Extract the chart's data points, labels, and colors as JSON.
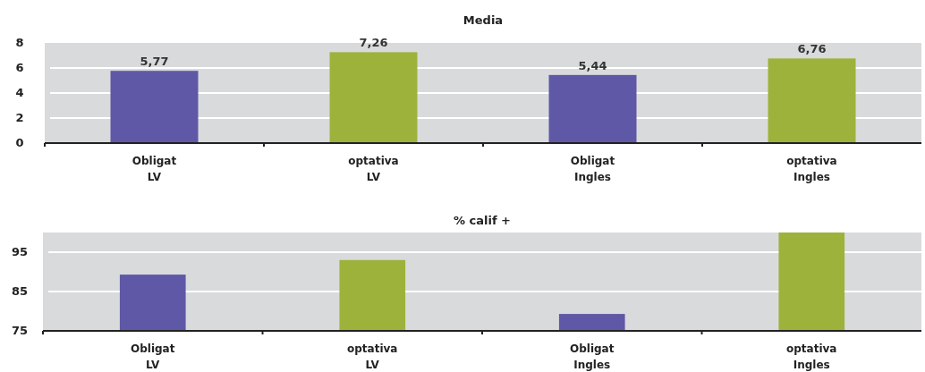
{
  "chart_data": [
    {
      "type": "bar",
      "title": "Media",
      "categories": [
        "Obligat LV",
        "optativa LV",
        "Obligat Ingles",
        "optativa Ingles"
      ],
      "values": [
        5.77,
        7.26,
        5.44,
        6.76
      ],
      "colors": [
        "#5f58a6",
        "#9db23b",
        "#5f58a6",
        "#9db23b"
      ],
      "value_labels": [
        "5,77",
        "7,26",
        "5,44",
        "6,76"
      ],
      "ylim": [
        0,
        8
      ],
      "yticks": [
        0,
        2,
        4,
        6,
        8
      ],
      "grid": "y"
    },
    {
      "type": "bar",
      "title": "% calif +",
      "categories": [
        "Obligat LV",
        "optativa LV",
        "Obligat Ingles",
        "optativa Ingles"
      ],
      "values": [
        89.3,
        93,
        79.3,
        100
      ],
      "colors": [
        "#5f58a6",
        "#9db23b",
        "#5f58a6",
        "#9db23b"
      ],
      "ylim": [
        75,
        100
      ],
      "yticks": [
        75,
        85,
        95
      ],
      "grid": "y"
    }
  ]
}
